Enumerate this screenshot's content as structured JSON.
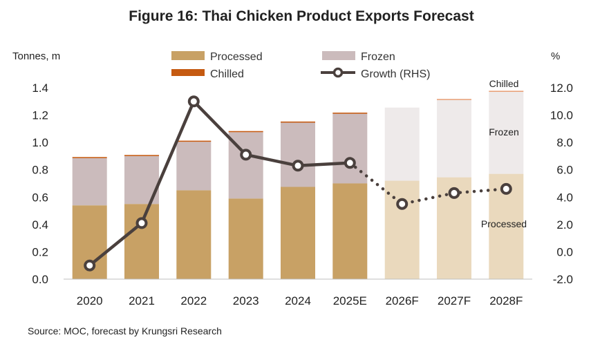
{
  "chart_data": {
    "type": "bar",
    "title": "Figure 16: Thai Chicken Product Exports Forecast",
    "ylabel_left": "Tonnes, m",
    "ylabel_right": "%",
    "source": "Source: MOC, forecast by Krungsri Research",
    "categories": [
      "2020",
      "2021",
      "2022",
      "2023",
      "2024",
      "2025E",
      "2026F",
      "2027F",
      "2028F"
    ],
    "forecast_from_index": 6,
    "ylim_left": [
      0,
      1.4
    ],
    "yticks_left": [
      "0.0",
      "0.2",
      "0.4",
      "0.6",
      "0.8",
      "1.0",
      "1.2",
      "1.4"
    ],
    "ylim_right": [
      -2,
      12
    ],
    "yticks_right": [
      "-2.0",
      "0.0",
      "2.0",
      "4.0",
      "6.0",
      "8.0",
      "10.0",
      "12.0"
    ],
    "grid": false,
    "legend_position": "top",
    "series": [
      {
        "name": "Processed",
        "kind": "bar",
        "axis": "left",
        "color": "#c8a165",
        "forecast_color": "#ead9bd",
        "values": [
          0.54,
          0.55,
          0.65,
          0.59,
          0.675,
          0.7,
          0.72,
          0.745,
          0.77
        ]
      },
      {
        "name": "Frozen",
        "kind": "bar",
        "axis": "left",
        "color": "#cbbbbc",
        "forecast_color": "#eeeaea",
        "values": [
          0.345,
          0.35,
          0.355,
          0.485,
          0.47,
          0.51,
          0.535,
          0.565,
          0.6
        ]
      },
      {
        "name": "Chilled",
        "kind": "bar",
        "axis": "left",
        "color": "#c55a11",
        "forecast_color": "#e8a27a",
        "values": [
          0.008,
          0.008,
          0.008,
          0.008,
          0.008,
          0.008,
          0.0,
          0.008,
          0.008
        ]
      },
      {
        "name": "Growth (RHS)",
        "kind": "line",
        "axis": "right",
        "color": "#4a403d",
        "values": [
          -1.0,
          2.1,
          11.0,
          7.1,
          6.3,
          6.5,
          3.5,
          4.3,
          4.6
        ]
      }
    ],
    "annotations": {
      "chilled": "Chilled",
      "frozen": "Frozen",
      "processed": "Processed"
    }
  }
}
